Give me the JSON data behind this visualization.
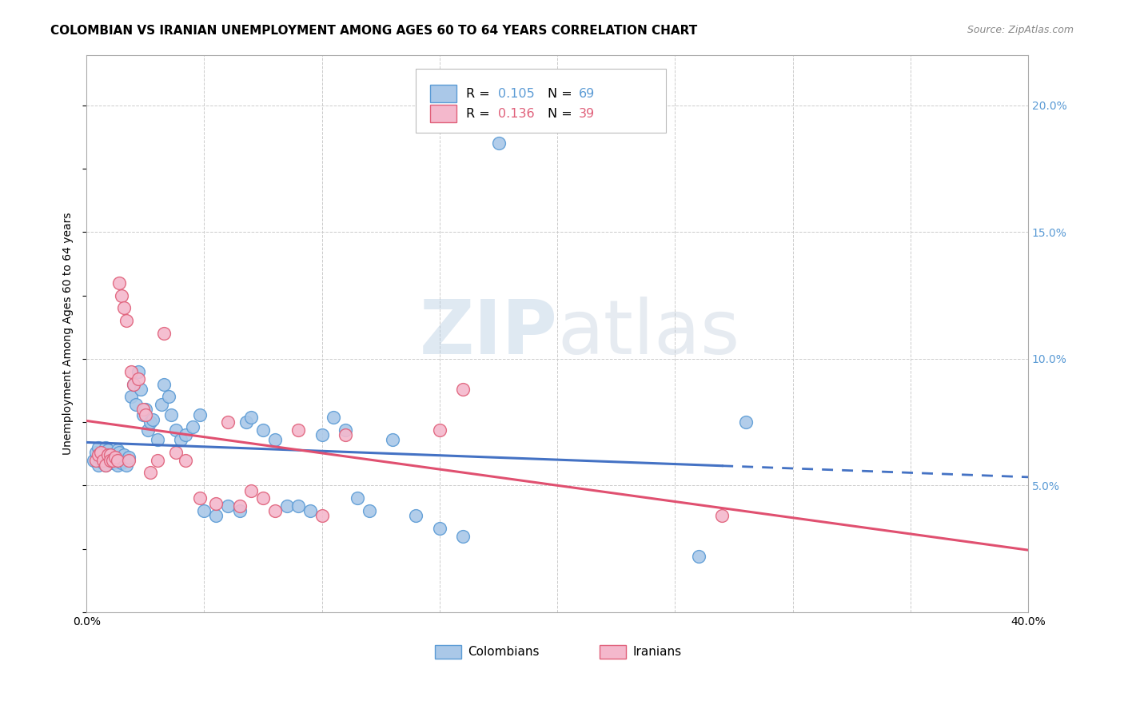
{
  "title": "COLOMBIAN VS IRANIAN UNEMPLOYMENT AMONG AGES 60 TO 64 YEARS CORRELATION CHART",
  "source": "Source: ZipAtlas.com",
  "ylabel": "Unemployment Among Ages 60 to 64 years",
  "xlim": [
    0.0,
    0.4
  ],
  "ylim": [
    0.0,
    0.22
  ],
  "colombian_color": "#aac8e8",
  "colombian_edge_color": "#5b9bd5",
  "iranian_color": "#f4b8cc",
  "iranian_edge_color": "#e0607a",
  "colombian_line_color": "#4472c4",
  "iranian_line_color": "#e05070",
  "background_color": "#ffffff",
  "grid_color": "#cccccc",
  "watermark_text": "ZIPatlas",
  "colombian_x": [
    0.003,
    0.004,
    0.005,
    0.005,
    0.006,
    0.006,
    0.007,
    0.007,
    0.008,
    0.008,
    0.009,
    0.009,
    0.01,
    0.01,
    0.011,
    0.011,
    0.012,
    0.012,
    0.013,
    0.013,
    0.014,
    0.015,
    0.016,
    0.016,
    0.017,
    0.018,
    0.019,
    0.02,
    0.021,
    0.022,
    0.023,
    0.024,
    0.025,
    0.026,
    0.027,
    0.028,
    0.03,
    0.032,
    0.033,
    0.035,
    0.036,
    0.038,
    0.04,
    0.042,
    0.045,
    0.048,
    0.05,
    0.055,
    0.06,
    0.065,
    0.068,
    0.07,
    0.075,
    0.08,
    0.085,
    0.09,
    0.095,
    0.1,
    0.105,
    0.11,
    0.115,
    0.12,
    0.13,
    0.14,
    0.15,
    0.16,
    0.175,
    0.26,
    0.28
  ],
  "colombian_y": [
    0.06,
    0.063,
    0.058,
    0.065,
    0.062,
    0.06,
    0.059,
    0.063,
    0.058,
    0.065,
    0.061,
    0.064,
    0.06,
    0.062,
    0.059,
    0.061,
    0.06,
    0.062,
    0.058,
    0.064,
    0.063,
    0.059,
    0.06,
    0.062,
    0.058,
    0.061,
    0.085,
    0.09,
    0.082,
    0.095,
    0.088,
    0.078,
    0.08,
    0.072,
    0.075,
    0.076,
    0.068,
    0.082,
    0.09,
    0.085,
    0.078,
    0.072,
    0.068,
    0.07,
    0.073,
    0.078,
    0.04,
    0.038,
    0.042,
    0.04,
    0.075,
    0.077,
    0.072,
    0.068,
    0.042,
    0.042,
    0.04,
    0.07,
    0.077,
    0.072,
    0.045,
    0.04,
    0.068,
    0.038,
    0.033,
    0.03,
    0.185,
    0.022,
    0.075
  ],
  "iranian_x": [
    0.004,
    0.005,
    0.006,
    0.007,
    0.008,
    0.009,
    0.01,
    0.01,
    0.011,
    0.012,
    0.013,
    0.014,
    0.015,
    0.016,
    0.017,
    0.018,
    0.019,
    0.02,
    0.022,
    0.024,
    0.025,
    0.027,
    0.03,
    0.033,
    0.038,
    0.042,
    0.048,
    0.055,
    0.06,
    0.065,
    0.07,
    0.075,
    0.08,
    0.09,
    0.1,
    0.11,
    0.15,
    0.16,
    0.27
  ],
  "iranian_y": [
    0.06,
    0.062,
    0.063,
    0.06,
    0.058,
    0.062,
    0.062,
    0.06,
    0.06,
    0.061,
    0.06,
    0.13,
    0.125,
    0.12,
    0.115,
    0.06,
    0.095,
    0.09,
    0.092,
    0.08,
    0.078,
    0.055,
    0.06,
    0.11,
    0.063,
    0.06,
    0.045,
    0.043,
    0.075,
    0.042,
    0.048,
    0.045,
    0.04,
    0.072,
    0.038,
    0.07,
    0.072,
    0.088,
    0.038
  ],
  "title_fontsize": 11,
  "tick_fontsize": 10,
  "axis_label_fontsize": 10,
  "source_fontsize": 9
}
